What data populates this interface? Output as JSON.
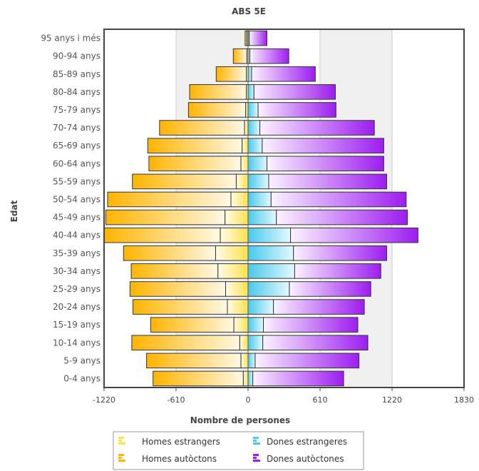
{
  "chart_data": {
    "type": "bar",
    "orientation": "horizontal",
    "stacking": "pyramid",
    "title": "ABS 5E",
    "xlabel": "Nombre de persones",
    "ylabel": "Edat",
    "xlim": [
      -1220,
      1830
    ],
    "xticks": [
      "-1220",
      "-610",
      "0",
      "610",
      "1220",
      "1830"
    ],
    "grid": "vertical bands",
    "legend_position": "bottom",
    "categories": [
      "95 anys i més",
      "90-94 anys",
      "85-89 anys",
      "80-84 anys",
      "75-79 anys",
      "70-74 anys",
      "65-69 anys",
      "60-64 anys",
      "55-59 anys",
      "50-54 anys",
      "45-49 anys",
      "40-44 anys",
      "35-39 anys",
      "30-34 anys",
      "25-29 anys",
      "20-24 anys",
      "15-19 anys",
      "10-14 anys",
      "5-9 anys",
      "0-4 anys"
    ],
    "series": [
      {
        "name": "Homes estrangers",
        "side": "left",
        "color": "#ffe14a",
        "values": [
          -10,
          -10,
          -15,
          -15,
          -20,
          -30,
          -50,
          -60,
          -100,
          -145,
          -195,
          -235,
          -275,
          -255,
          -190,
          -175,
          -120,
          -70,
          -60,
          -40
        ]
      },
      {
        "name": "Dones estrangeres",
        "side": "right",
        "color": "#48c9ec",
        "values": [
          10,
          15,
          30,
          50,
          85,
          100,
          120,
          160,
          175,
          195,
          240,
          360,
          385,
          395,
          350,
          215,
          130,
          125,
          60,
          40
        ]
      },
      {
        "name": "Homes autòctons",
        "side": "left",
        "color": "#ffb400",
        "values": [
          -15,
          -115,
          -255,
          -480,
          -485,
          -720,
          -800,
          -780,
          -880,
          -1045,
          -1010,
          -985,
          -780,
          -735,
          -810,
          -800,
          -705,
          -915,
          -800,
          -765
        ]
      },
      {
        "name": "Dones autòctones",
        "side": "right",
        "color": "#9d1df0",
        "values": [
          150,
          330,
          540,
          690,
          660,
          970,
          1030,
          990,
          1000,
          1145,
          1110,
          1080,
          790,
          730,
          690,
          770,
          800,
          890,
          880,
          770
        ]
      }
    ]
  },
  "legend": {
    "items": [
      {
        "label": "Homes estrangers",
        "color": "#ffe14a"
      },
      {
        "label": "Dones estrangeres",
        "color": "#48c9ec"
      },
      {
        "label": "Homes autòctons",
        "color": "#ffb400"
      },
      {
        "label": "Dones autòctones",
        "color": "#9d1df0"
      }
    ]
  }
}
